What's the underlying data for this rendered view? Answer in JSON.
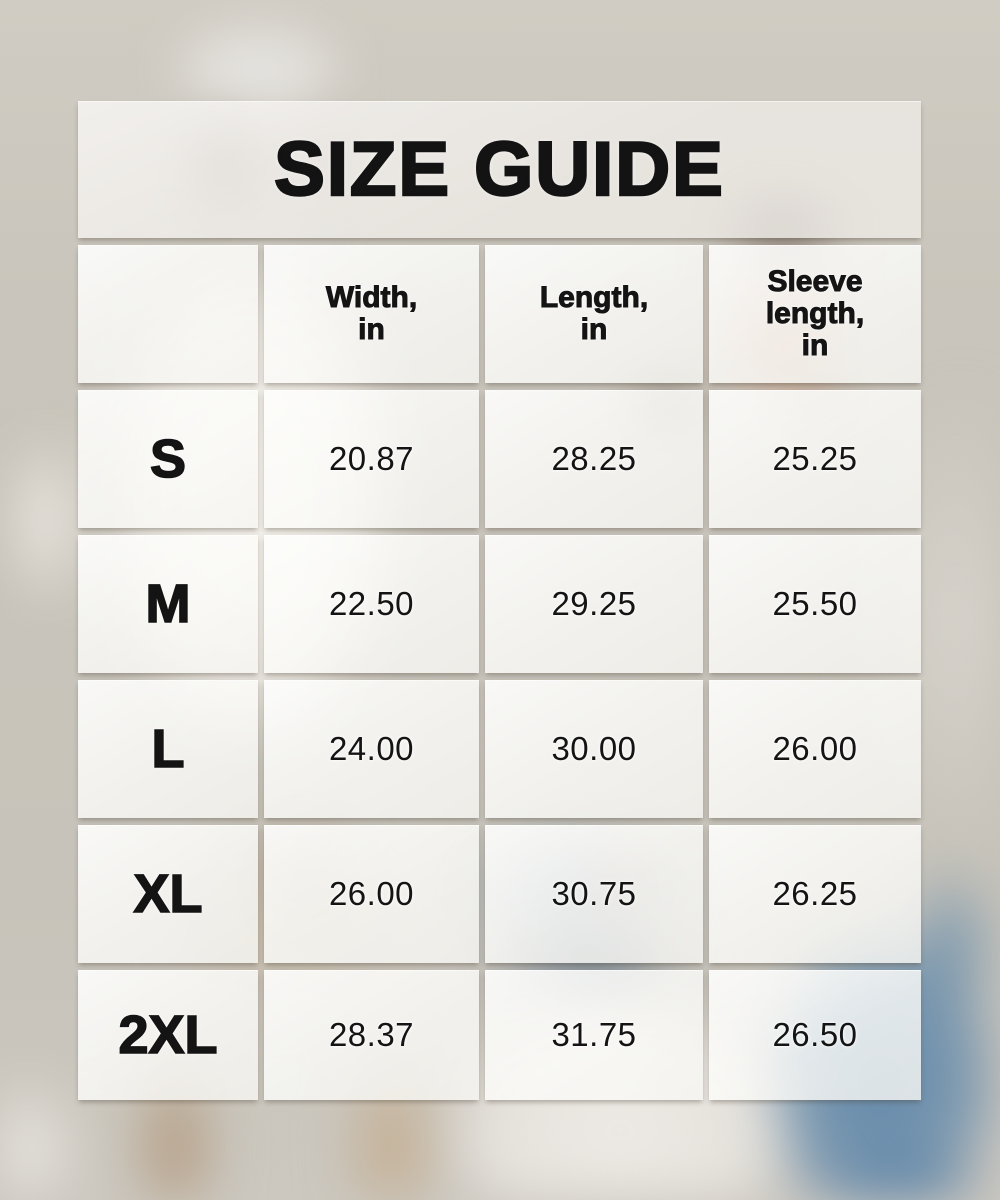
{
  "title": "SIZE GUIDE",
  "table": {
    "corner_label": "",
    "columns": [
      "Width,\nin",
      "Length,\nin",
      "Sleeve\nlength,\nin"
    ],
    "rows": [
      {
        "size": "S",
        "width": "20.87",
        "length": "28.25",
        "sleeve": "25.25"
      },
      {
        "size": "M",
        "width": "22.50",
        "length": "29.25",
        "sleeve": "25.50"
      },
      {
        "size": "L",
        "width": "24.00",
        "length": "30.00",
        "sleeve": "26.00"
      },
      {
        "size": "XL",
        "width": "26.00",
        "length": "30.75",
        "sleeve": "26.25"
      },
      {
        "size": "2XL",
        "width": "28.37",
        "length": "31.75",
        "sleeve": "26.50"
      }
    ]
  },
  "colors": {
    "text": "#141414",
    "cell_panel": "#f4f2ee",
    "title_band": "#e9e6e0",
    "background_base": "#cac6bd",
    "khaki_garment": "#b89d7e",
    "blue_garment": "#5d86aa",
    "skin_tone": "#c89e86"
  }
}
